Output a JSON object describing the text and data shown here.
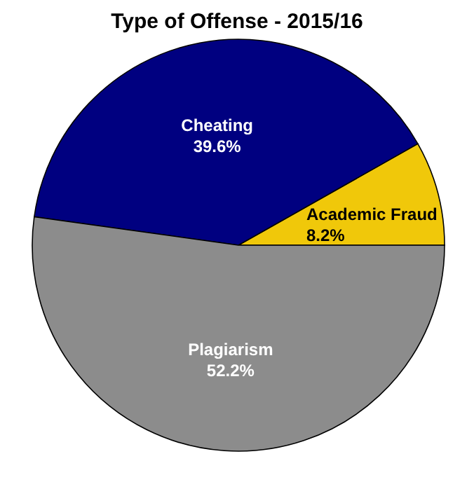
{
  "chart_data": {
    "type": "pie",
    "title": "Type of Offense - 2015/16",
    "categories": [
      "Academic Fraud",
      "Cheating",
      "Plagiarism"
    ],
    "values": [
      8.2,
      39.6,
      52.2
    ],
    "value_labels": [
      "8.2%",
      "39.6%",
      "52.2%"
    ],
    "colors": [
      "#f0c80a",
      "#000080",
      "#8c8c8c"
    ]
  }
}
